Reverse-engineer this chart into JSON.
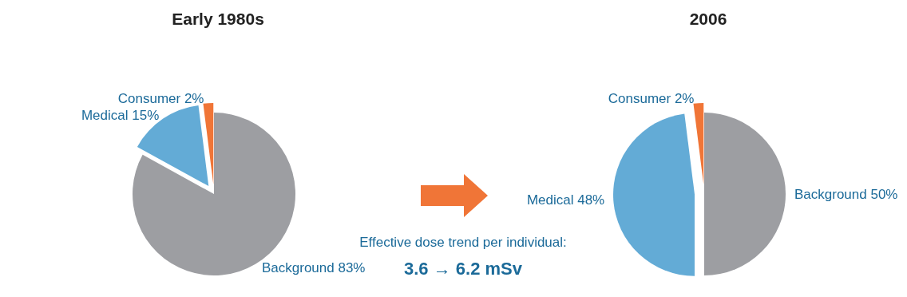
{
  "chart_data": [
    {
      "type": "pie",
      "title": "Early 1980s",
      "categories": [
        "Background",
        "Medical",
        "Consumer"
      ],
      "values": [
        83,
        15,
        2
      ],
      "colors": [
        "#9d9ea2",
        "#63abd6",
        "#f07537"
      ],
      "value_labels": [
        "83%",
        "15%",
        "2%"
      ]
    },
    {
      "type": "pie",
      "title": "2006",
      "categories": [
        "Background",
        "Medical",
        "Consumer"
      ],
      "values": [
        50,
        48,
        2
      ],
      "colors": [
        "#9d9ea2",
        "#63abd6",
        "#f07537"
      ],
      "value_labels": [
        "50%",
        "48%",
        "2%"
      ]
    },
    {
      "type": "other",
      "annotations": [
        "Effective dose trend per individual:",
        "3.6 → 6.2 mSv"
      ]
    }
  ]
}
